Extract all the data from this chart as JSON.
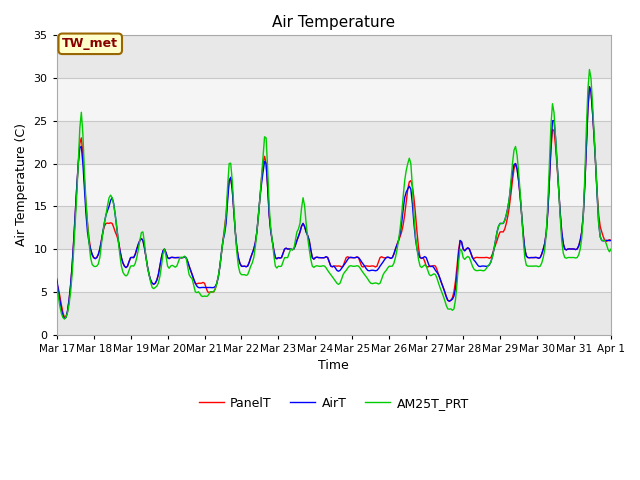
{
  "title": "Air Temperature",
  "ylabel": "Air Temperature (C)",
  "xlabel": "Time",
  "annotation": "TW_met",
  "ylim": [
    0,
    35
  ],
  "xlim": [
    0,
    360
  ],
  "tick_labels": [
    "Mar 17",
    "Mar 18",
    "Mar 19",
    "Mar 20",
    "Mar 21",
    "Mar 22",
    "Mar 23",
    "Mar 24",
    "Mar 25",
    "Mar 26",
    "Mar 27",
    "Mar 28",
    "Mar 29",
    "Mar 30",
    "Mar 31",
    "Apr 1"
  ],
  "tick_positions": [
    0,
    24,
    48,
    72,
    96,
    120,
    144,
    168,
    192,
    216,
    240,
    264,
    288,
    312,
    336,
    360
  ],
  "yticks": [
    0,
    5,
    10,
    15,
    20,
    25,
    30,
    35
  ],
  "legend_labels": [
    "PanelT",
    "AirT",
    "AM25T_PRT"
  ],
  "colors": [
    "#ff0000",
    "#0000ff",
    "#00cc00"
  ],
  "line_width": 1.0,
  "fig_bg": "#ffffff",
  "plot_bg": "#e8e8e8",
  "white_band_color": "#f5f5f5",
  "annotation_bg": "#ffffcc",
  "annotation_color": "#880000",
  "annotation_border": "#996600",
  "grid_color": "#d8d8d8",
  "panel_ctrl_t": [
    0,
    3,
    6,
    8,
    10,
    12,
    14,
    16,
    18,
    20,
    22,
    24,
    26,
    28,
    30,
    32,
    34,
    36,
    38,
    40,
    42,
    44,
    46,
    48,
    50,
    52,
    54,
    56,
    58,
    60,
    62,
    64,
    66,
    68,
    70,
    72,
    74,
    76,
    78,
    80,
    82,
    84,
    86,
    88,
    90,
    92,
    94,
    96,
    98,
    100,
    102,
    104,
    106,
    108,
    110,
    112,
    114,
    116,
    118,
    120,
    122,
    124,
    126,
    128,
    130,
    132,
    134,
    136,
    138,
    140,
    142,
    144,
    146,
    148,
    150,
    152,
    154,
    156,
    158,
    160,
    162,
    164,
    166,
    168,
    170,
    172,
    174,
    176,
    178,
    180,
    182,
    184,
    186,
    188,
    190,
    192,
    194,
    196,
    198,
    200,
    202,
    204,
    206,
    208,
    210,
    212,
    214,
    216,
    218,
    220,
    222,
    224,
    226,
    228,
    230,
    232,
    234,
    236,
    238,
    240,
    242,
    244,
    246,
    248,
    250,
    252,
    254,
    256,
    258,
    260,
    262,
    264,
    266,
    268,
    270,
    272,
    274,
    276,
    278,
    280,
    282,
    284,
    286,
    288,
    290,
    292,
    294,
    296,
    298,
    300,
    302,
    304,
    306,
    308,
    310,
    312,
    314,
    316,
    318,
    320,
    322,
    324,
    326,
    328,
    330,
    332,
    334,
    336,
    338,
    340,
    342,
    344,
    346,
    348,
    350,
    352,
    354,
    356,
    358,
    360
  ],
  "panel_ctrl_v": [
    6,
    3.5,
    2,
    4,
    8,
    14,
    20,
    23,
    18,
    13,
    10,
    9,
    9,
    10,
    12,
    13,
    13,
    13,
    12,
    11,
    9,
    8,
    8,
    9,
    9,
    10,
    11,
    11,
    9,
    7,
    6,
    6,
    7,
    9,
    10,
    9,
    9,
    9,
    9,
    9,
    9,
    9,
    8,
    7,
    6,
    6,
    6,
    6,
    5,
    5,
    5,
    6,
    8,
    11,
    14,
    18,
    17,
    12,
    9,
    8,
    8,
    8,
    9,
    10,
    12,
    16,
    20,
    20,
    14,
    11,
    9,
    9,
    9,
    10,
    10,
    10,
    10,
    11,
    12,
    13,
    12,
    11,
    9,
    9,
    9,
    9,
    9,
    9,
    8,
    8,
    8,
    8,
    8,
    9,
    9,
    9,
    9,
    9,
    8,
    8,
    8,
    8,
    8,
    8,
    9,
    9,
    9,
    9,
    9,
    10,
    11,
    12,
    14,
    17,
    18,
    16,
    12,
    9,
    9,
    8,
    8,
    8,
    8,
    7,
    6,
    5,
    4,
    4,
    5,
    8,
    11,
    10,
    10,
    10,
    9,
    9,
    9,
    9,
    9,
    9,
    9,
    10,
    11,
    12,
    12,
    13,
    15,
    18,
    20,
    18,
    14,
    10,
    9,
    9,
    9,
    9,
    9,
    10,
    12,
    18,
    24,
    22,
    17,
    12,
    10,
    10,
    10,
    10,
    10,
    11,
    14,
    22,
    29,
    26,
    20,
    14,
    12,
    11,
    11,
    11
  ],
  "blue_ctrl_v": [
    6.5,
    3,
    2,
    4,
    8,
    14,
    20,
    22,
    17,
    12,
    10,
    9,
    9,
    10,
    12,
    14,
    15,
    16,
    14,
    11,
    9,
    8,
    8,
    9,
    9,
    10,
    11,
    11,
    9,
    7,
    6,
    6,
    7,
    9,
    10,
    9,
    9,
    9,
    9,
    9,
    9,
    9,
    8,
    7,
    6,
    5.5,
    5.5,
    5.5,
    5.5,
    5.5,
    5.5,
    6,
    8,
    11,
    13,
    18,
    17,
    12,
    9,
    8,
    8,
    8,
    9,
    10,
    12,
    16,
    19,
    20,
    14,
    11,
    9,
    9,
    9,
    10,
    10,
    10,
    10,
    11,
    12,
    13,
    12,
    11,
    9,
    9,
    9,
    9,
    9,
    9,
    8,
    8,
    7.5,
    7.5,
    8,
    8.5,
    9,
    9,
    9,
    9,
    8.5,
    8,
    7.5,
    7.5,
    7.5,
    7.5,
    8,
    8.5,
    9,
    9,
    9,
    10,
    11,
    13,
    16,
    17,
    17,
    13,
    10,
    9,
    9,
    9,
    8,
    8,
    7.5,
    7,
    6,
    5,
    4,
    4,
    4.5,
    7,
    11,
    10,
    10,
    10,
    9,
    8.5,
    8,
    8,
    8,
    8,
    8.5,
    10,
    12,
    13,
    13,
    14,
    16,
    19,
    20,
    18,
    14,
    10,
    9,
    9,
    9,
    9,
    9,
    10,
    12,
    18,
    25,
    23,
    17,
    12,
    10,
    10,
    10,
    10,
    10,
    11,
    14,
    22,
    29,
    26,
    20,
    13,
    11,
    11,
    11,
    11
  ],
  "green_ctrl_v": [
    6,
    2.5,
    2,
    3.5,
    7,
    13,
    20,
    26,
    19,
    13,
    9,
    8,
    8,
    9,
    12,
    14,
    16,
    16,
    14,
    11,
    8,
    7,
    7,
    8,
    8,
    9,
    11,
    12,
    9,
    7,
    5.5,
    5.5,
    6,
    8,
    10,
    8,
    8,
    8,
    8,
    9,
    9,
    9,
    7,
    6.5,
    5,
    5,
    4.5,
    4.5,
    4.5,
    5,
    5,
    6,
    8,
    11,
    14,
    20,
    18,
    12,
    8,
    7,
    7,
    7,
    8,
    9,
    12,
    16,
    21,
    23,
    15,
    11,
    8,
    8,
    8,
    9,
    9,
    10,
    10,
    12,
    13,
    16,
    13,
    10,
    8,
    8,
    8,
    8,
    8,
    7.5,
    7,
    6.5,
    6,
    6,
    7,
    7.5,
    8,
    8,
    8,
    8,
    7.5,
    7,
    6.5,
    6,
    6,
    6,
    6,
    7,
    7.5,
    8,
    8,
    9,
    11,
    14,
    18,
    20,
    20,
    14,
    10,
    8,
    8,
    8,
    7,
    7,
    7,
    6,
    5,
    4,
    3,
    3,
    3,
    6,
    10,
    9,
    9,
    9,
    8,
    7.5,
    7.5,
    7.5,
    7.5,
    8,
    8.5,
    10,
    12,
    13,
    13,
    14,
    16,
    20,
    22,
    19,
    14,
    9,
    8,
    8,
    8,
    8,
    8,
    9,
    12,
    20,
    27,
    23,
    17,
    11,
    9,
    9,
    9,
    9,
    9,
    10,
    14,
    24,
    31,
    27,
    20,
    13,
    11,
    11,
    10,
    10
  ]
}
